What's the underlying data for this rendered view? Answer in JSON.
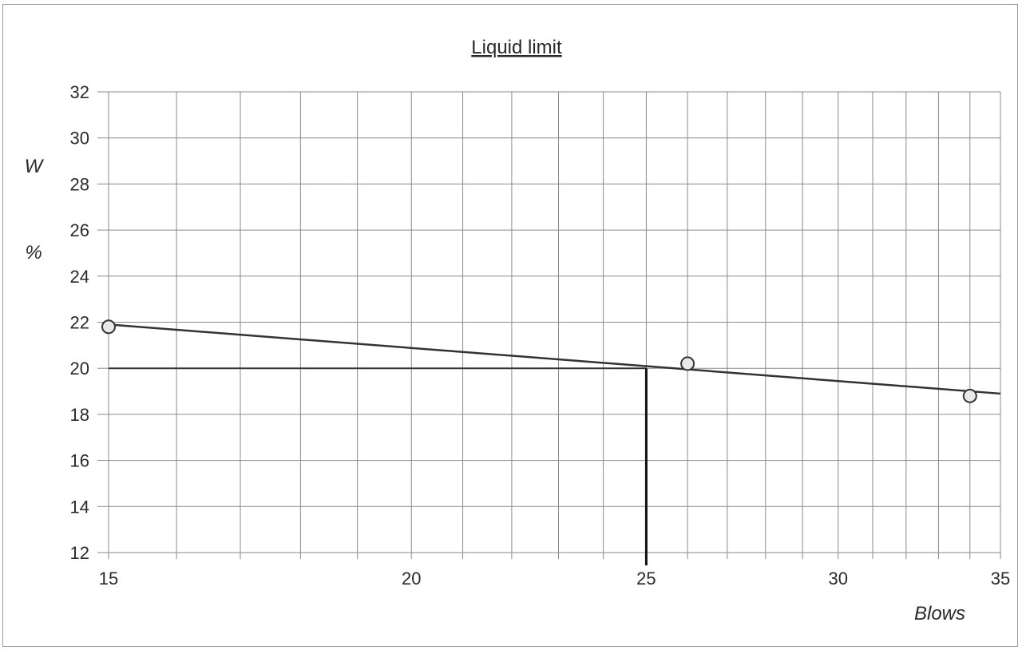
{
  "chart_data": {
    "type": "line",
    "title": "Liquid limit",
    "ylabel_top": "W",
    "ylabel_bottom": "%",
    "xlabel": "Blows",
    "x_scale": "log",
    "xlim": [
      15,
      35
    ],
    "ylim": [
      12,
      32
    ],
    "x_ticks": [
      15,
      20,
      25,
      30,
      35
    ],
    "y_ticks": [
      12,
      14,
      16,
      18,
      20,
      22,
      24,
      26,
      28,
      30,
      32
    ],
    "grid": true,
    "points": [
      {
        "x": 15,
        "y": 21.8
      },
      {
        "x": 26,
        "y": 20.2
      },
      {
        "x": 34,
        "y": 18.8
      }
    ],
    "fit_line": [
      {
        "x": 15,
        "y": 21.9
      },
      {
        "x": 35,
        "y": 18.9
      }
    ],
    "liquid_limit": {
      "blows": 25,
      "w": 20.0
    },
    "colors": {
      "grid": "#8a8a8a",
      "line": "#333333",
      "marker_fill": "#e8e8e8",
      "marker_stroke": "#333333"
    }
  }
}
